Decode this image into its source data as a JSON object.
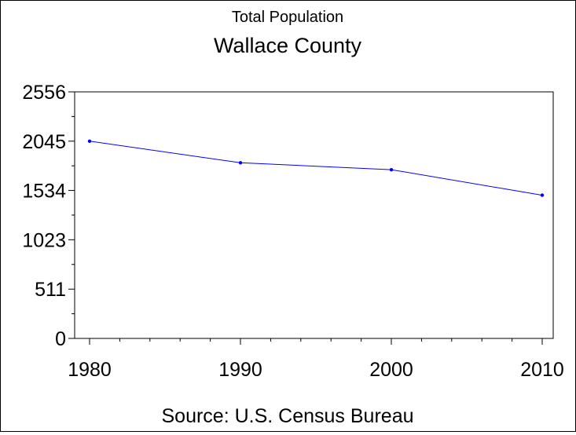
{
  "chart_data": {
    "type": "line",
    "title": "Total Population",
    "subtitle": "Wallace County",
    "footnote": "Source: U.S. Census Bureau",
    "x": [
      1980,
      1990,
      2000,
      2010
    ],
    "xticks": [
      "1980",
      "1990",
      "2000",
      "2010"
    ],
    "xlim": [
      1980,
      2010
    ],
    "yticks": [
      "0",
      "511",
      "1023",
      "1534",
      "2045",
      "2556"
    ],
    "ytick_values": [
      0,
      511,
      1023,
      1534,
      2045,
      2556
    ],
    "ylim": [
      0,
      2556
    ],
    "series": [
      {
        "values": [
          2045,
          1821,
          1749,
          1485
        ],
        "color": "#0000ff"
      }
    ],
    "grid": false,
    "legend": "none"
  }
}
